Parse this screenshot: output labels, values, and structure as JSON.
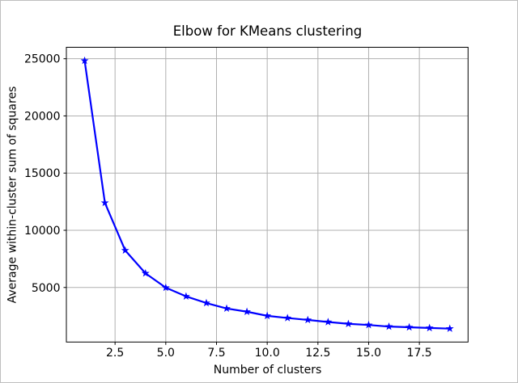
{
  "chart_data": {
    "type": "line",
    "title": "Elbow for KMeans clustering",
    "xlabel": "Number of clusters",
    "ylabel": "Average within-cluster sum of squares",
    "x": [
      1,
      2,
      3,
      4,
      5,
      6,
      7,
      8,
      9,
      10,
      11,
      12,
      13,
      14,
      15,
      16,
      17,
      18,
      19
    ],
    "y": [
      24830,
      12400,
      8240,
      6240,
      4980,
      4220,
      3640,
      3160,
      2880,
      2520,
      2330,
      2160,
      1980,
      1820,
      1720,
      1580,
      1520,
      1460,
      1400
    ],
    "xlim": [
      0.1,
      19.9
    ],
    "ylim": [
      228,
      26002
    ],
    "xticks": [
      2.5,
      5.0,
      7.5,
      10.0,
      12.5,
      15.0,
      17.5
    ],
    "xtick_labels": [
      "2.5",
      "5.0",
      "7.5",
      "10.0",
      "12.5",
      "15.0",
      "17.5"
    ],
    "yticks": [
      5000,
      10000,
      15000,
      20000,
      25000
    ],
    "ytick_labels": [
      "5000",
      "10000",
      "15000",
      "20000",
      "25000"
    ],
    "grid": true,
    "legend_position": "none",
    "line_color": "#0000ff",
    "marker": "star",
    "marker_color": "#0000ff",
    "grid_color": "#b0b0b0",
    "spine_color": "#000000",
    "tick_label_color": "#000000",
    "background_color": "#ffffff"
  }
}
